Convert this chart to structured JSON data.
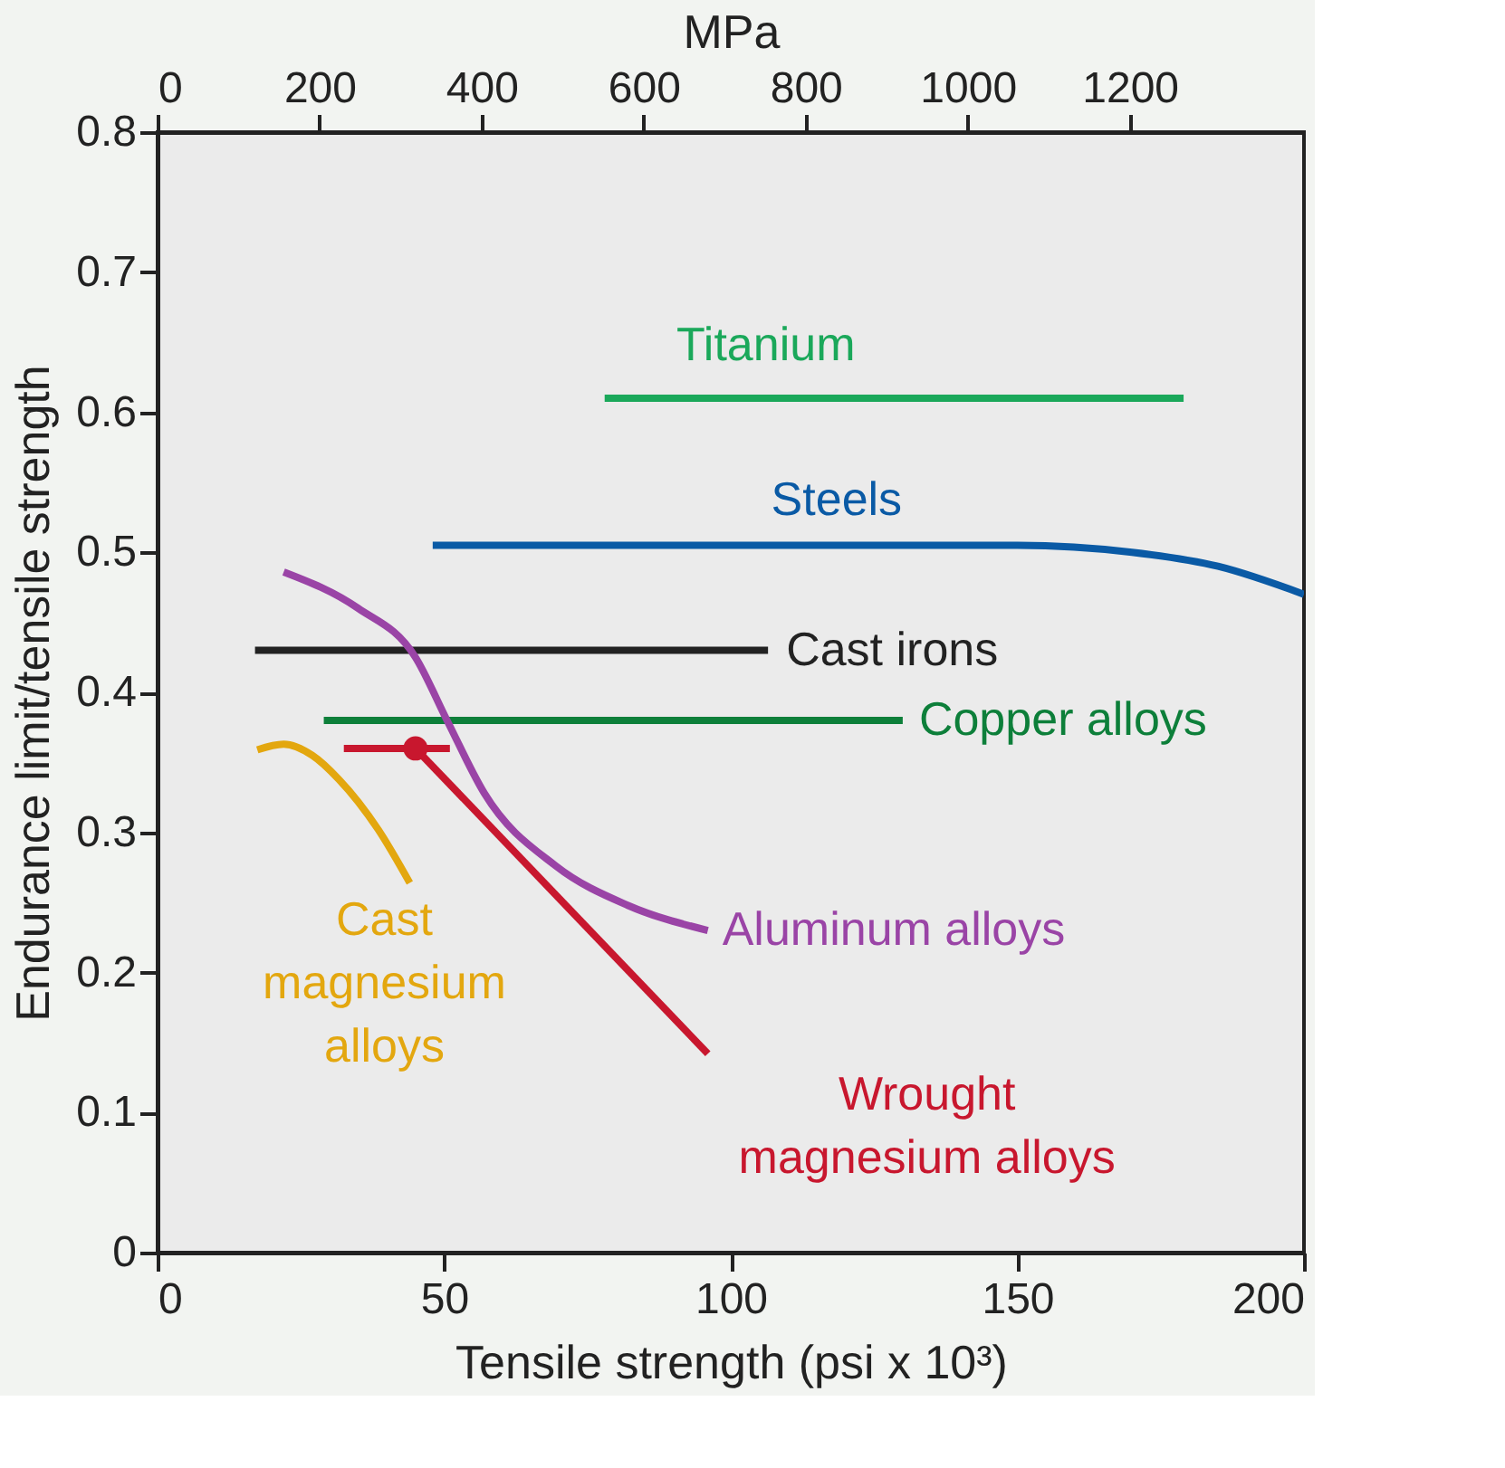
{
  "chart_data": {
    "type": "line",
    "xlabel": "Tensile strength (psi x 10³)",
    "ylabel": "Endurance limit/tensile strength",
    "x2label": "MPa",
    "xlim": [
      0,
      200
    ],
    "xticks": [
      0,
      50,
      100,
      150,
      200
    ],
    "ylim": [
      0,
      0.8
    ],
    "yticks": [
      0,
      0.1,
      0.2,
      0.3,
      0.4,
      0.5,
      0.6,
      0.7,
      0.8
    ],
    "x2lim": [
      0,
      1415
    ],
    "x2ticks": [
      0,
      200,
      400,
      600,
      800,
      {
        "value": 1000,
        "label": "1000"
      },
      {
        "value": 1200,
        "label": "1200"
      }
    ],
    "grid": false,
    "line_style": "solid",
    "series": [
      {
        "name": "Titanium",
        "color": "#1aa85a",
        "x": [
          78,
          179
        ],
        "values": [
          0.61,
          0.61
        ]
      },
      {
        "name": "Steels",
        "color": "#0a5aa5",
        "x": [
          48,
          150,
          170,
          185,
          200
        ],
        "values": [
          0.505,
          0.505,
          0.5,
          0.49,
          0.47
        ]
      },
      {
        "name": "Cast irons",
        "color": "#222222",
        "x": [
          17,
          106.5
        ],
        "values": [
          0.43,
          0.43
        ]
      },
      {
        "name": "Copper alloys",
        "color": "#0d7f3a",
        "x": [
          29,
          130
        ],
        "values": [
          0.38,
          0.38
        ]
      },
      {
        "name": "Aluminum alloys",
        "color": "#9a44a6",
        "x": [
          22,
          35,
          45,
          50.5,
          57,
          69.5,
          82,
          96
        ],
        "values": [
          0.486,
          0.46,
          0.425,
          0.38,
          0.328,
          0.276,
          0.248,
          0.23
        ]
      },
      {
        "name": "Wrought\nmagnesium alloys",
        "color": "#c8172e",
        "x": [
          45,
          96
        ],
        "values": [
          0.36,
          0.142
        ]
      },
      {
        "name": "Cast\nmagnesium\nalloys",
        "color": "#e3a70f",
        "x": [
          17.4,
          22,
          27,
          31.6,
          38.5,
          44
        ],
        "values": [
          0.359,
          0.363,
          0.355,
          0.338,
          0.302,
          0.264
        ]
      },
      {
        "color": "#c8172e",
        "x": [
          32.5,
          51
        ],
        "values": [
          0.36,
          0.36
        ]
      },
      {
        "type": "scatter",
        "marker": "circle",
        "color": "#c8172e",
        "x": [
          45
        ],
        "values": [
          0.36
        ]
      }
    ]
  }
}
